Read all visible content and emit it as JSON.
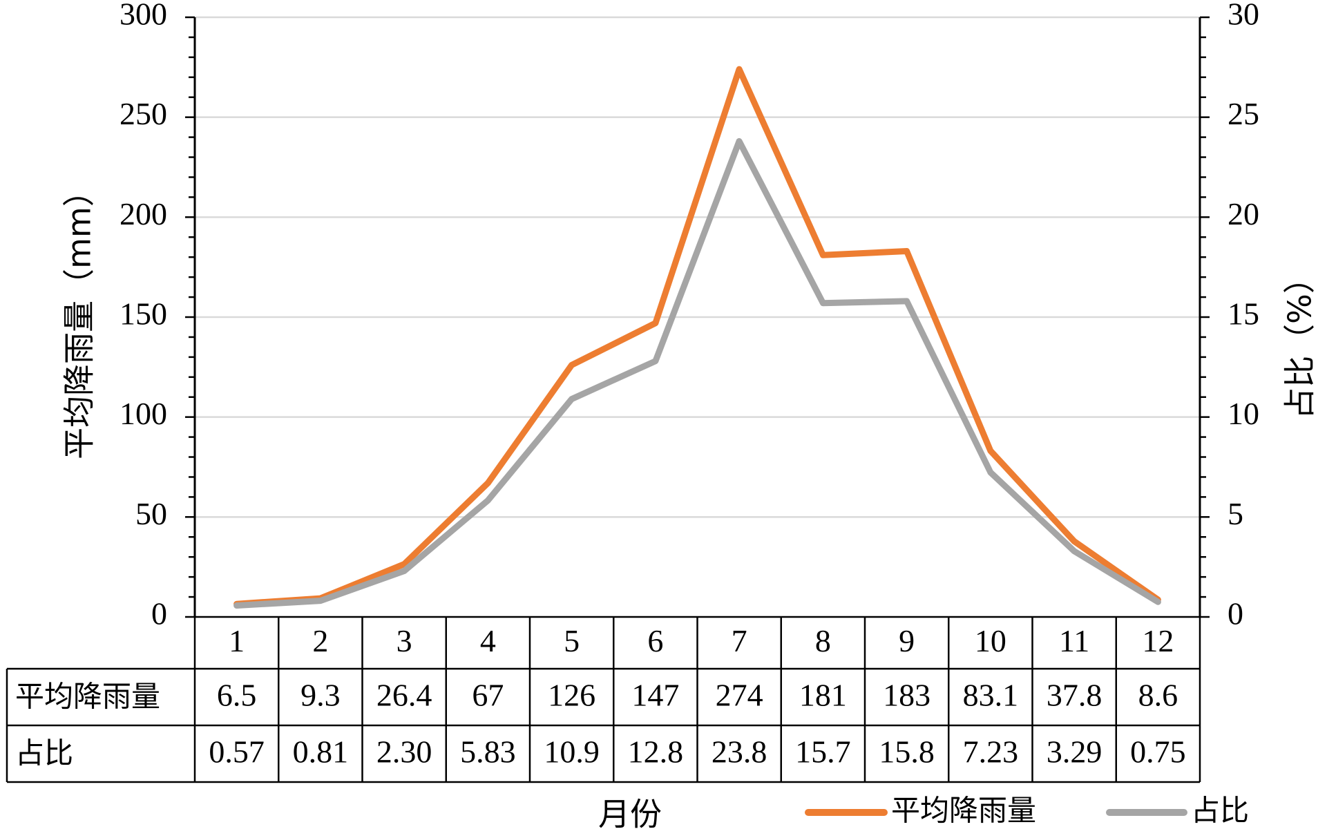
{
  "chart_data": {
    "type": "line",
    "categories": [
      "1",
      "2",
      "3",
      "4",
      "5",
      "6",
      "7",
      "8",
      "9",
      "10",
      "11",
      "12"
    ],
    "series": [
      {
        "name": "平均降雨量",
        "axis": "left",
        "color": "#ED7D31",
        "values": [
          6.5,
          9.3,
          26.4,
          67,
          126,
          147,
          274,
          181,
          183,
          83.1,
          37.8,
          8.6
        ],
        "labels": [
          "6.5",
          "9.3",
          "26.4",
          "67",
          "126",
          "147",
          "274",
          "181",
          "183",
          "83.1",
          "37.8",
          "8.6"
        ]
      },
      {
        "name": "占比",
        "axis": "right",
        "color": "#A5A5A5",
        "values": [
          0.57,
          0.81,
          2.3,
          5.83,
          10.9,
          12.8,
          23.8,
          15.7,
          15.8,
          7.23,
          3.29,
          0.75
        ],
        "labels": [
          "0.57",
          "0.81",
          "2.30",
          "5.83",
          "10.9",
          "12.8",
          "23.8",
          "15.7",
          "15.8",
          "7.23",
          "3.29",
          "0.75"
        ]
      }
    ],
    "xlabel": "月份",
    "ylabel_left": "平均降雨量（mm）",
    "ylabel_right": "占比（%）",
    "ylim_left": [
      0,
      300
    ],
    "ylim_right": [
      0,
      30
    ],
    "yticks_left": [
      "0",
      "50",
      "100",
      "150",
      "200",
      "250",
      "300"
    ],
    "yticks_right": [
      "0",
      "5",
      "10",
      "15",
      "20",
      "25",
      "30"
    ],
    "grid": true,
    "grid_color": "#D9D9D9",
    "legend_position": "bottom-right",
    "data_table": true
  }
}
